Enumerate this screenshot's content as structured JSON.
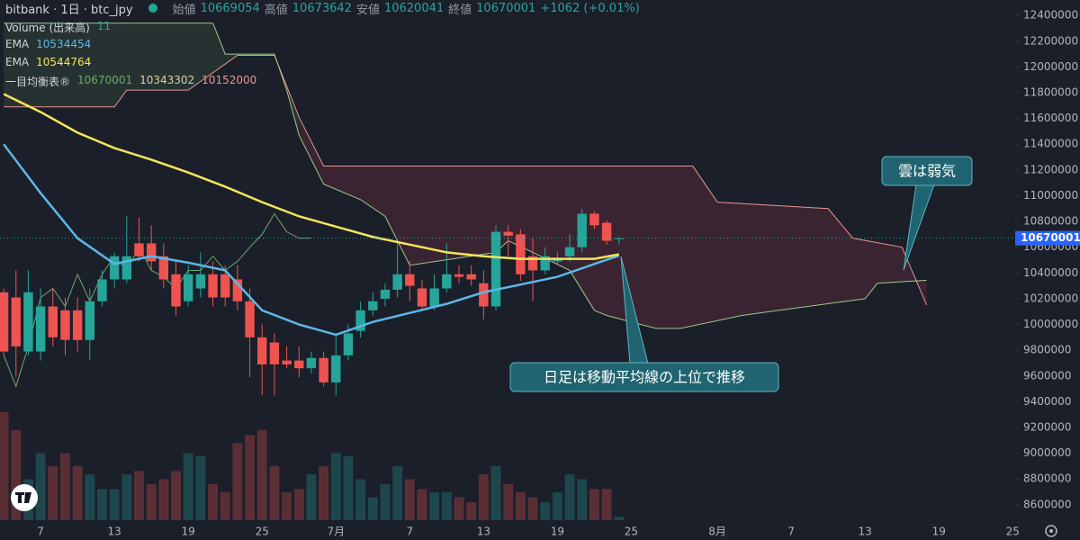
{
  "header": {
    "symbol": "bitbank · 1日 · btc_jpy",
    "open_label": "始値",
    "high_label": "高値",
    "low_label": "安値",
    "close_label": "終値",
    "change": "+1062 (+0.01%)"
  },
  "chart_data": {
    "type": "candlestick",
    "xlim": [
      2.7,
      85.2
    ],
    "xticks": [
      {
        "value": 6,
        "label": "7"
      },
      {
        "value": 12,
        "label": "13"
      },
      {
        "value": 18,
        "label": "19"
      },
      {
        "value": 24,
        "label": "25"
      },
      {
        "value": 30,
        "label": "7月"
      },
      {
        "value": 36,
        "label": "7"
      },
      {
        "value": 42,
        "label": "13"
      },
      {
        "value": 48,
        "label": "19"
      },
      {
        "value": 54,
        "label": "25"
      },
      {
        "value": 61,
        "label": "8月"
      },
      {
        "value": 67,
        "label": "7"
      },
      {
        "value": 73,
        "label": "13"
      },
      {
        "value": 79,
        "label": "19"
      },
      {
        "value": 85,
        "label": "25"
      }
    ],
    "ylim": [
      8480000,
      12520000
    ],
    "yticks": [
      8600000,
      8800000,
      9000000,
      9200000,
      9400000,
      9600000,
      9800000,
      10000000,
      10200000,
      10400000,
      10600000,
      10800000,
      11000000,
      11200000,
      11400000,
      11600000,
      11800000,
      12000000,
      12200000,
      12400000
    ],
    "up_color": "#26a69a",
    "down_color": "#ef5350",
    "x": [
      3,
      4,
      5,
      6,
      7,
      8,
      9,
      10,
      11,
      12,
      13,
      14,
      15,
      16,
      17,
      18,
      19,
      20,
      21,
      22,
      23,
      24,
      25,
      26,
      27,
      28,
      29,
      30,
      31,
      32,
      33,
      34,
      35,
      36,
      37,
      38,
      39,
      40,
      41,
      42,
      43,
      44,
      45,
      46,
      47,
      48,
      49,
      50,
      51,
      52,
      53
    ],
    "open": [
      10250000,
      10210000,
      9790000,
      9790000,
      10140000,
      10110000,
      10110000,
      9880000,
      10180000,
      10350000,
      10350000,
      10630000,
      10630000,
      10530000,
      10390000,
      10180000,
      10280000,
      10390000,
      10390000,
      10350000,
      10180000,
      9900000,
      9860000,
      9720000,
      9720000,
      9660000,
      9740000,
      9550000,
      9760000,
      9950000,
      10110000,
      10200000,
      10270000,
      10390000,
      10280000,
      10140000,
      10280000,
      10390000,
      10390000,
      10320000,
      10140000,
      10720000,
      10700000,
      10530000,
      10420000,
      10490000,
      10530000,
      10600000,
      10860000,
      10790000,
      10669054
    ],
    "high": [
      10280000,
      10420000,
      10420000,
      10280000,
      10280000,
      10210000,
      10210000,
      10280000,
      10420000,
      10560000,
      10840000,
      10830000,
      10770000,
      10630000,
      10490000,
      10460000,
      10560000,
      10490000,
      10460000,
      10460000,
      10280000,
      10000000,
      9930000,
      9830000,
      9830000,
      9790000,
      9790000,
      9930000,
      10000000,
      10180000,
      10250000,
      10320000,
      10630000,
      10490000,
      10350000,
      10390000,
      10630000,
      10460000,
      10460000,
      10420000,
      10770000,
      10770000,
      10740000,
      10670000,
      10600000,
      10560000,
      10700000,
      10900000,
      10880000,
      10810000,
      10673642
    ],
    "low": [
      9760000,
      9590000,
      9760000,
      9720000,
      9830000,
      9760000,
      9790000,
      9720000,
      10140000,
      10280000,
      10320000,
      10490000,
      10420000,
      10280000,
      10070000,
      10140000,
      10210000,
      10140000,
      10140000,
      10110000,
      9590000,
      9450000,
      9450000,
      9660000,
      9590000,
      9620000,
      9520000,
      9450000,
      9720000,
      9900000,
      10070000,
      10140000,
      10210000,
      10180000,
      10110000,
      10110000,
      10250000,
      10320000,
      10300000,
      10040000,
      10110000,
      10530000,
      10340000,
      10180000,
      10390000,
      10460000,
      10490000,
      10560000,
      10740000,
      10620000,
      10620041
    ],
    "close": [
      9790000,
      9830000,
      10250000,
      10140000,
      9900000,
      9880000,
      9880000,
      10180000,
      10350000,
      10530000,
      10530000,
      10530000,
      10490000,
      10350000,
      10140000,
      10390000,
      10390000,
      10210000,
      10210000,
      10180000,
      9900000,
      9690000,
      9690000,
      9690000,
      9660000,
      9740000,
      9550000,
      9760000,
      9930000,
      10110000,
      10180000,
      10270000,
      10390000,
      10300000,
      10140000,
      10280000,
      10390000,
      10370000,
      10350000,
      10140000,
      10720000,
      10690000,
      10390000,
      10420000,
      10530000,
      10510000,
      10600000,
      10860000,
      10770000,
      10650000,
      10670001
    ],
    "volume": {
      "name": "Volume (出来高)",
      "lim": [
        0,
        500
      ],
      "values": [
        330,
        275,
        125,
        205,
        165,
        205,
        165,
        140,
        95,
        95,
        140,
        150,
        110,
        125,
        150,
        205,
        195,
        110,
        85,
        235,
        260,
        275,
        165,
        85,
        95,
        140,
        165,
        205,
        195,
        125,
        70,
        110,
        165,
        125,
        95,
        85,
        85,
        70,
        55,
        140,
        165,
        110,
        85,
        70,
        55,
        85,
        140,
        125,
        95,
        95,
        11
      ]
    },
    "lines": [
      {
        "name": "EMA",
        "color": "#5bb8e6",
        "x": [
          3,
          6,
          9,
          12,
          15,
          18,
          21,
          24,
          27,
          30,
          33,
          36,
          39,
          42,
          45,
          48,
          51,
          53
        ],
        "values": [
          11400000,
          11020000,
          10670000,
          10470000,
          10530000,
          10480000,
          10420000,
          10110000,
          10000000,
          9920000,
          10020000,
          10090000,
          10160000,
          10250000,
          10310000,
          10370000,
          10470000,
          10534454
        ]
      },
      {
        "name": "EMA",
        "color": "#f5e55c",
        "x": [
          3,
          6,
          9,
          12,
          15,
          18,
          21,
          24,
          27,
          30,
          33,
          36,
          39,
          42,
          45,
          48,
          51,
          53
        ],
        "values": [
          11790000,
          11650000,
          11490000,
          11370000,
          11280000,
          11180000,
          11070000,
          10950000,
          10840000,
          10760000,
          10680000,
          10620000,
          10560000,
          10530000,
          10510000,
          10510000,
          10510000,
          10544764
        ]
      }
    ],
    "ichimoku": {
      "name": "一目均衡表®",
      "lagging": {
        "color": "#6fa86a",
        "x": [
          3,
          4,
          5,
          6,
          7,
          8,
          9,
          10,
          11,
          12,
          13,
          14,
          15,
          16,
          17,
          18,
          19,
          20,
          21,
          22,
          23,
          24,
          25,
          26,
          27,
          28
        ],
        "values": [
          9760000,
          9520000,
          9830000,
          10210000,
          10280000,
          10140000,
          10390000,
          10180000,
          10390000,
          10530000,
          10420000,
          10600000,
          10420000,
          10370000,
          10280000,
          10420000,
          10420000,
          10530000,
          10420000,
          10490000,
          10600000,
          10700000,
          10860000,
          10720000,
          10670000,
          10670001
        ]
      },
      "span_b": {
        "color": "#9fc98a",
        "x": [
          3,
          20,
          21,
          25,
          26,
          27,
          29,
          32,
          34,
          36,
          43,
          44,
          46,
          49,
          51,
          52,
          56,
          58,
          63,
          66,
          73,
          74,
          78
        ],
        "values": [
          12340000,
          12340000,
          12100000,
          12100000,
          11820000,
          11470000,
          11090000,
          10970000,
          10840000,
          10460000,
          10560000,
          10650000,
          10560000,
          10420000,
          10110000,
          10070000,
          9970000,
          9970000,
          10070000,
          10110000,
          10200000,
          10320000,
          10343302
        ]
      },
      "span_a": {
        "color": "#e8968e",
        "x": [
          3,
          12,
          13,
          18,
          22,
          25,
          27,
          29,
          59,
          61,
          70,
          72,
          76,
          78
        ],
        "values": [
          11690000,
          11690000,
          11820000,
          11820000,
          12090000,
          12090000,
          11610000,
          11230000,
          11230000,
          10950000,
          10900000,
          10670000,
          10600000,
          10152000
        ]
      }
    },
    "annotations": [
      {
        "text": "雲は弱気"
      },
      {
        "text": "日足は移動平均線の上位で推移"
      }
    ]
  }
}
